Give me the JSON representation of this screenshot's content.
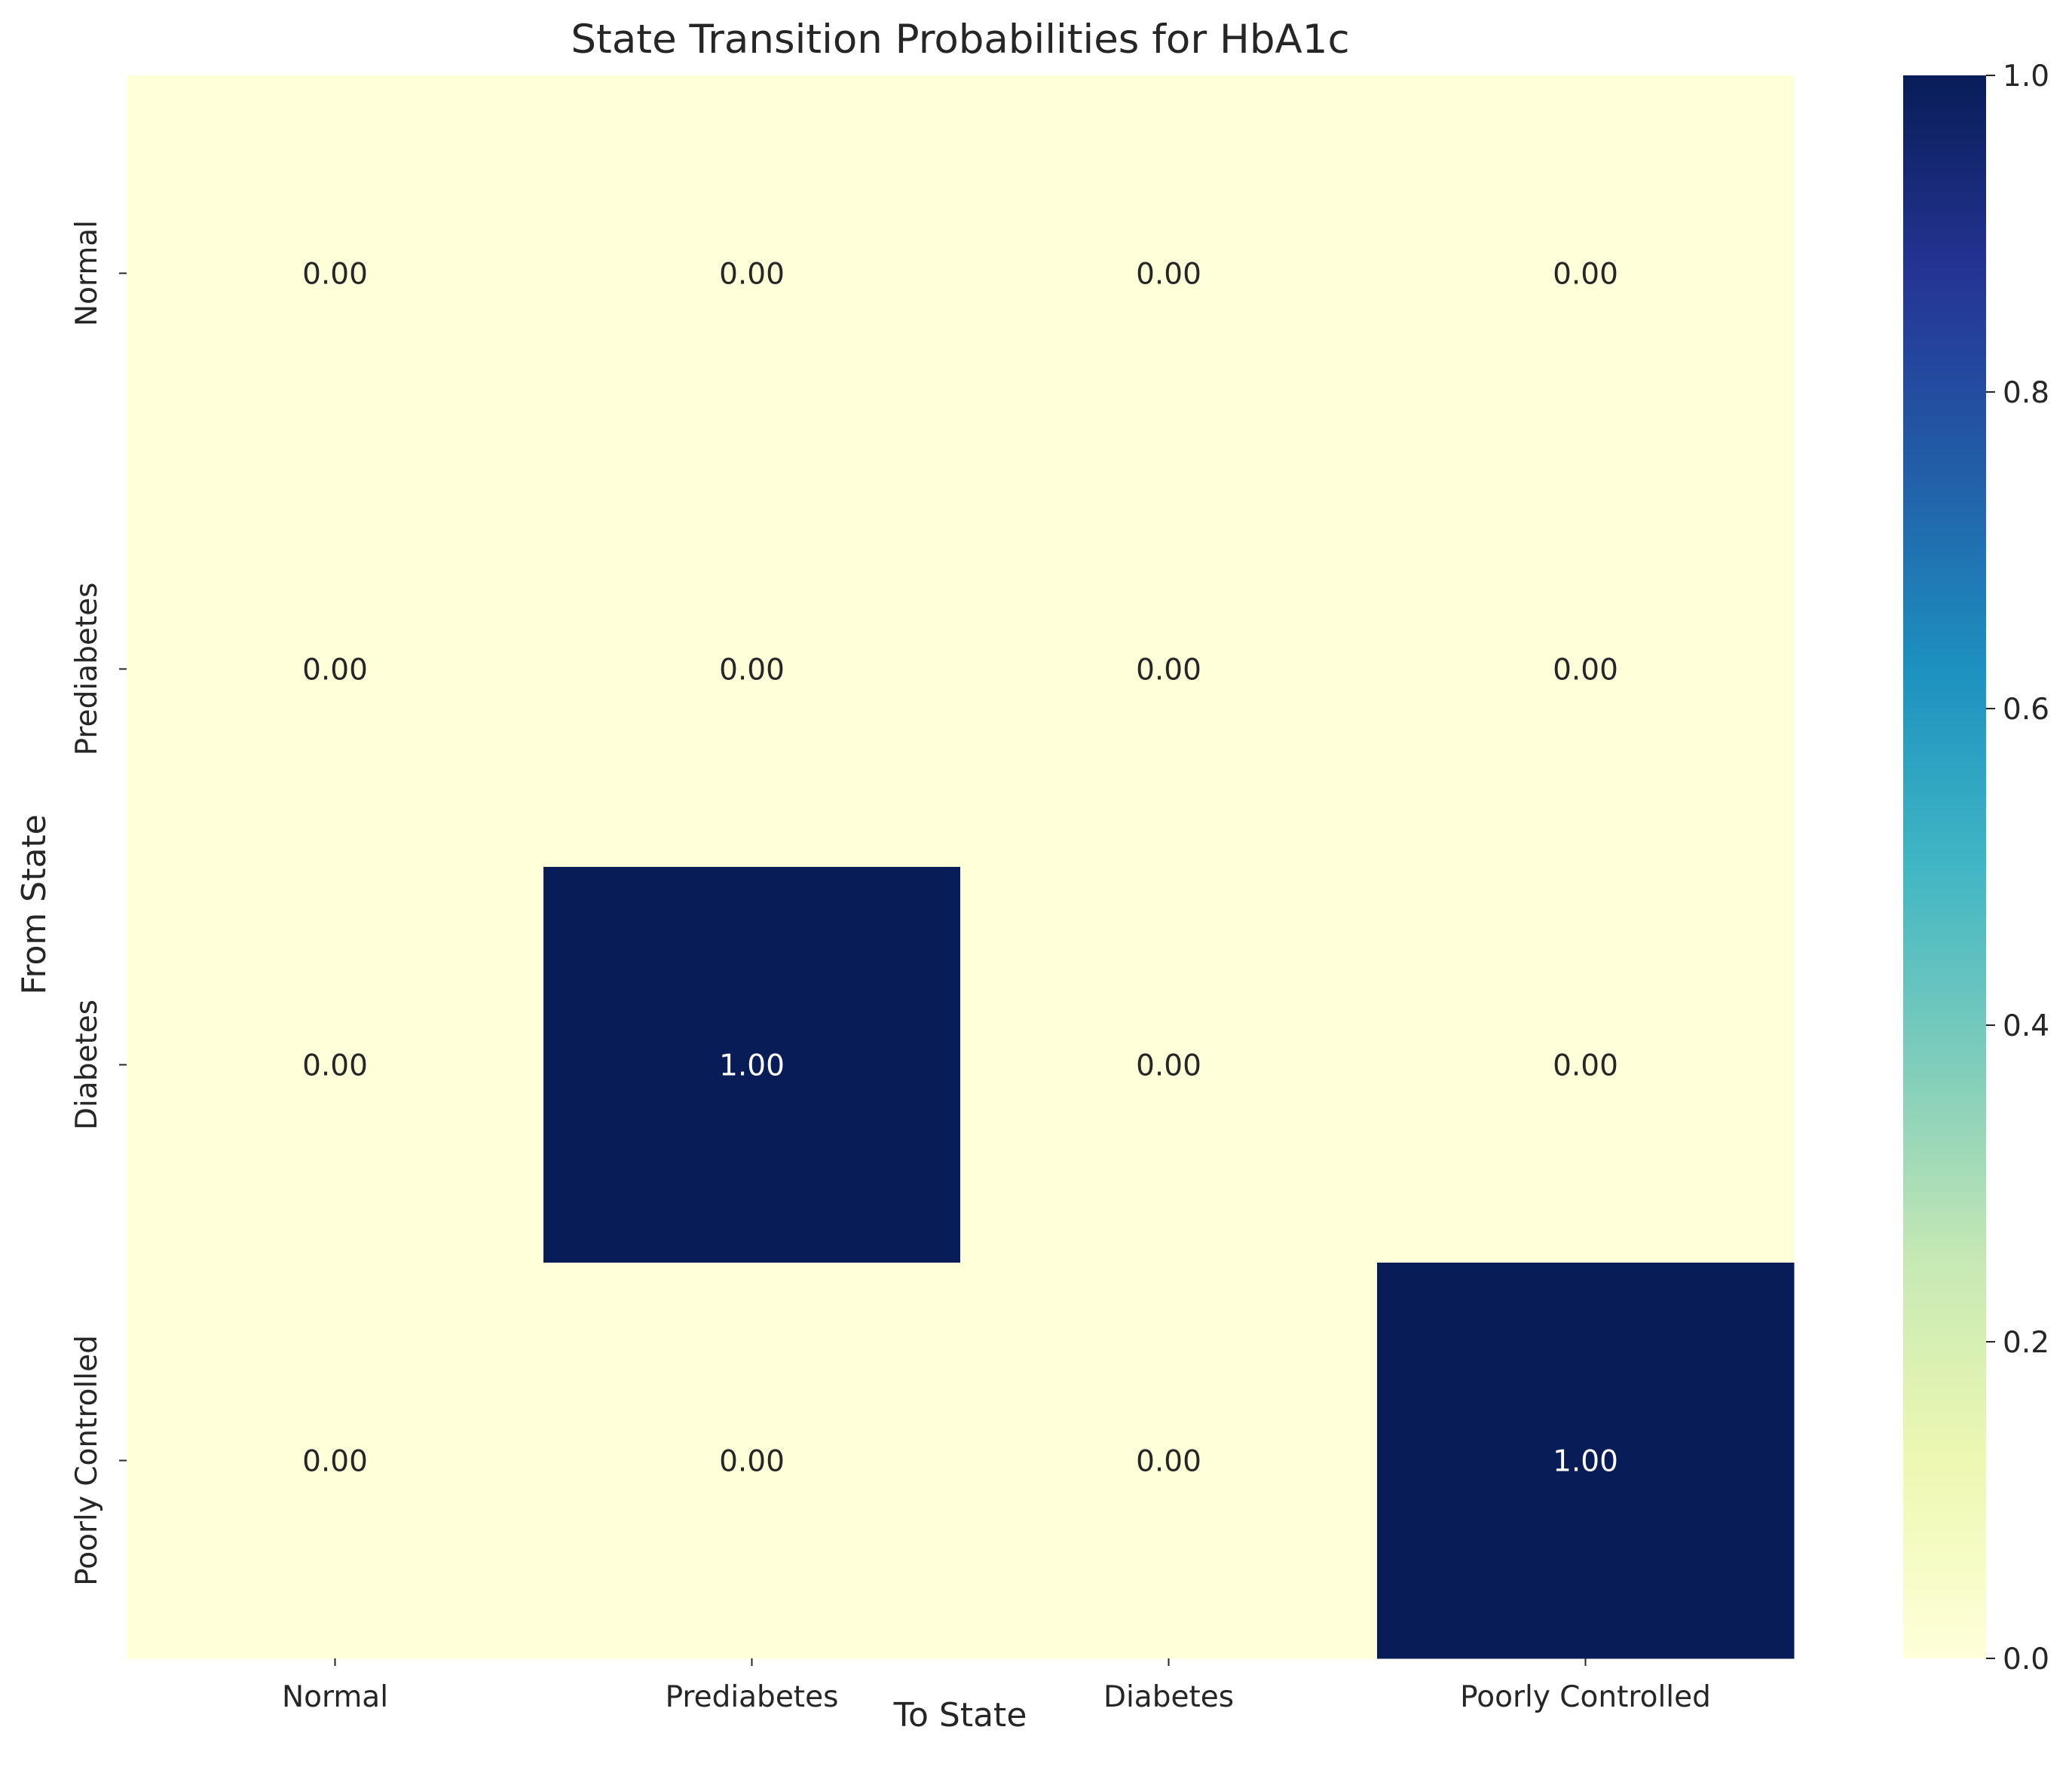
{
  "chart_data": {
    "type": "heatmap",
    "title": "State Transition Probabilities for HbA1c",
    "xlabel": "To State",
    "ylabel": "From State",
    "x_categories": [
      "Normal",
      "Prediabetes",
      "Diabetes",
      "Poorly Controlled"
    ],
    "y_categories": [
      "Normal",
      "Prediabetes",
      "Diabetes",
      "Poorly Controlled"
    ],
    "values": [
      [
        0.0,
        0.0,
        0.0,
        0.0
      ],
      [
        0.0,
        0.0,
        0.0,
        0.0
      ],
      [
        0.0,
        1.0,
        0.0,
        0.0
      ],
      [
        0.0,
        0.0,
        0.0,
        1.0
      ]
    ],
    "cell_labels": [
      [
        "0.00",
        "0.00",
        "0.00",
        "0.00"
      ],
      [
        "0.00",
        "0.00",
        "0.00",
        "0.00"
      ],
      [
        "0.00",
        "1.00",
        "0.00",
        "0.00"
      ],
      [
        "0.00",
        "0.00",
        "0.00",
        "1.00"
      ]
    ],
    "colormap": "YlGnBu",
    "color_range": [
      0.0,
      1.0
    ],
    "colorbar_ticks": [
      0.0,
      0.2,
      0.4,
      0.6,
      0.8,
      1.0
    ],
    "colorbar_tick_labels": [
      "0.0",
      "0.2",
      "0.4",
      "0.6",
      "0.8",
      "1.0"
    ],
    "colorbar_stops": [
      "#ffffd9",
      "#edf8b1",
      "#c7e9b4",
      "#7fcdbb",
      "#41b6c4",
      "#1d91c0",
      "#225ea8",
      "#253494",
      "#081d58"
    ],
    "light_text_color": "#ffffff",
    "dark_text_color": "#262626",
    "axis_text_color": "#262626"
  }
}
